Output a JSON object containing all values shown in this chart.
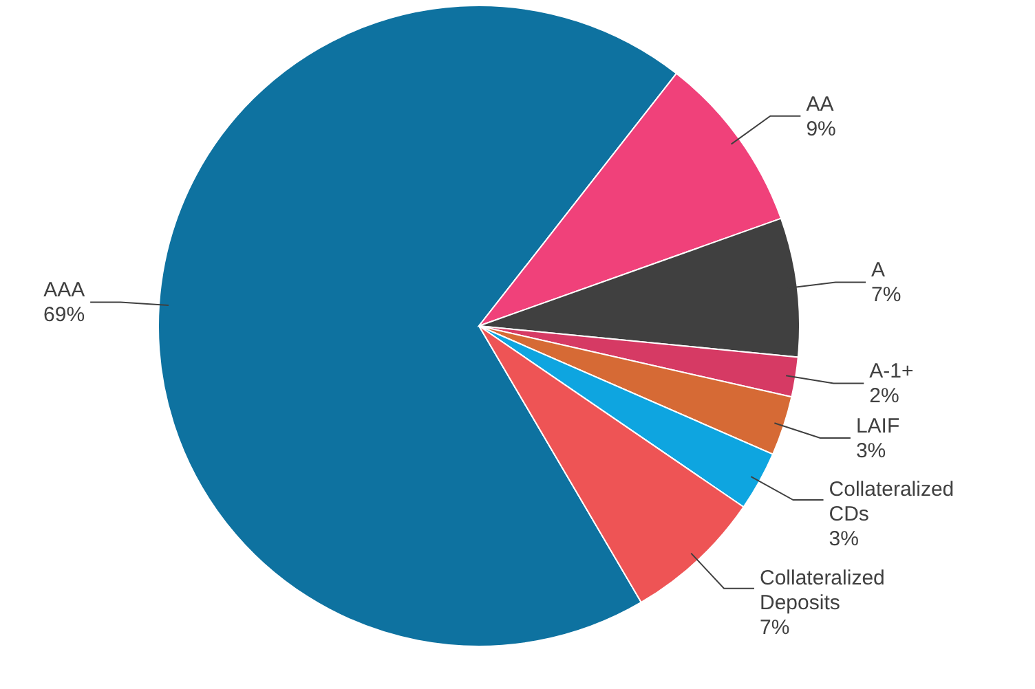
{
  "chart_data": {
    "type": "pie",
    "categories": [
      "AAA",
      "AA",
      "A",
      "A-1+",
      "LAIF",
      "Collateralized CDs",
      "Collateralized Deposits"
    ],
    "values": [
      69,
      9,
      7,
      2,
      3,
      3,
      7
    ],
    "value_labels": [
      "69%",
      "9%",
      "7%",
      "2%",
      "3%",
      "3%",
      "7%"
    ],
    "colors": [
      "#0e72a0",
      "#f0417a",
      "#404040",
      "#d63a64",
      "#d66a35",
      "#0ea5e0",
      "#ee5455"
    ]
  }
}
